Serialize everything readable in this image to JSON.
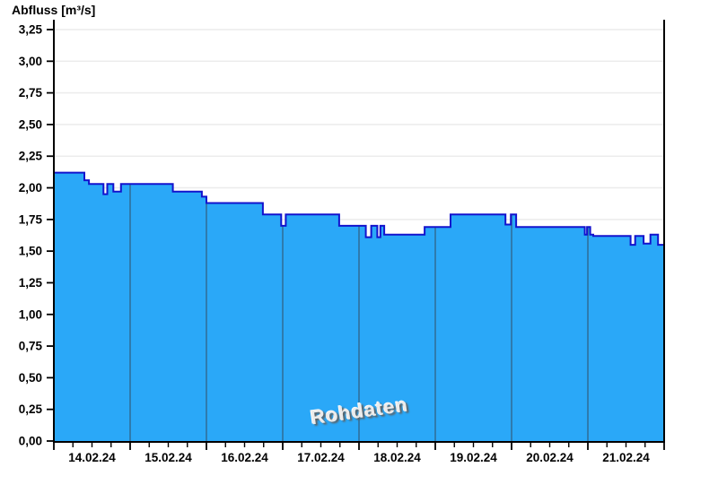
{
  "page": {
    "background": "#ffffff"
  },
  "chart_data": {
    "type": "area",
    "title": "Abfluss [m³/s]",
    "watermark": "Rohdaten",
    "ylabel": "Abfluss [m³/s]",
    "xlabel": "",
    "ylim": [
      0,
      3.25
    ],
    "y_tick_values": [
      0,
      0.25,
      0.5,
      0.75,
      1.0,
      1.25,
      1.5,
      1.75,
      2.0,
      2.25,
      2.5,
      2.75,
      3.0,
      3.25
    ],
    "y_tick_labels": [
      "0,00",
      "0,25",
      "0,50",
      "0,75",
      "1,00",
      "1,25",
      "1,50",
      "1,75",
      "2,00",
      "2,25",
      "2,50",
      "2,75",
      "3,00",
      "3,25"
    ],
    "x_tick_labels": [
      "14.02.24",
      "15.02.24",
      "16.02.24",
      "17.02.24",
      "18.02.24",
      "19.02.24",
      "20.02.24",
      "21.02.24"
    ],
    "x_days_total": 8,
    "minor_ticks_per_day": 4,
    "grid": "horizontal-only",
    "legend_position": "none",
    "series": [
      {
        "name": "Abfluss Rohdaten",
        "unit": "m³/s",
        "step_points_day_value": [
          [
            0.0,
            2.12
          ],
          [
            0.4,
            2.06
          ],
          [
            0.46,
            2.03
          ],
          [
            0.65,
            1.95
          ],
          [
            0.7,
            2.03
          ],
          [
            0.78,
            1.97
          ],
          [
            0.88,
            2.03
          ],
          [
            1.56,
            1.97
          ],
          [
            1.94,
            1.93
          ],
          [
            2.0,
            1.88
          ],
          [
            2.74,
            1.79
          ],
          [
            2.98,
            1.7
          ],
          [
            3.04,
            1.79
          ],
          [
            3.74,
            1.7
          ],
          [
            4.09,
            1.61
          ],
          [
            4.16,
            1.7
          ],
          [
            4.24,
            1.61
          ],
          [
            4.28,
            1.7
          ],
          [
            4.33,
            1.63
          ],
          [
            4.86,
            1.69
          ],
          [
            5.2,
            1.79
          ],
          [
            5.92,
            1.71
          ],
          [
            5.99,
            1.79
          ],
          [
            6.06,
            1.69
          ],
          [
            6.96,
            1.63
          ],
          [
            6.99,
            1.69
          ],
          [
            7.03,
            1.63
          ],
          [
            7.07,
            1.62
          ],
          [
            7.56,
            1.55
          ],
          [
            7.62,
            1.62
          ],
          [
            7.73,
            1.56
          ],
          [
            7.82,
            1.63
          ],
          [
            7.92,
            1.55
          ]
        ]
      }
    ],
    "colors": {
      "fill": "#2aa8f8",
      "line": "#1313cd",
      "day_boundary_line": "#31688e",
      "grid": "#ececec",
      "axis": "#000000",
      "text": "#000000",
      "watermark_face": "#ececec",
      "watermark_shadow": "#5f5f5f"
    }
  }
}
